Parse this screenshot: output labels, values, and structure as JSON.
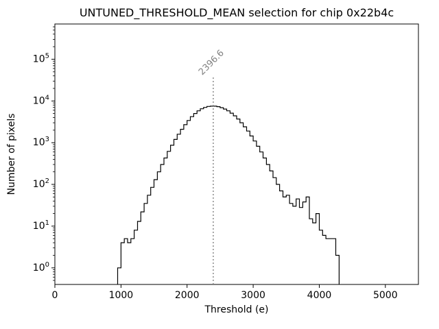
{
  "figure": {
    "title": "UNTUNED_THRESHOLD_MEAN selection for chip 0x22b4c",
    "xlabel": "Threshold (e)",
    "ylabel": "Number of pixels"
  },
  "chart_data": {
    "type": "bar",
    "subtype": "step-histogram",
    "title": "UNTUNED_THRESHOLD_MEAN selection for chip 0x22b4c",
    "xlabel": "Threshold (e)",
    "ylabel": "Number of pixels",
    "yscale": "log",
    "grid": false,
    "legend": "none",
    "xlim": [
      0,
      5500
    ],
    "ylim": [
      0.4,
      700000
    ],
    "x_ticks": [
      0,
      1000,
      2000,
      3000,
      4000,
      5000
    ],
    "y_tick_exponents": [
      0,
      1,
      2,
      3,
      4,
      5
    ],
    "bin_start": 950,
    "bin_width": 50,
    "counts": [
      1,
      4,
      5,
      4,
      5,
      8,
      13,
      22,
      35,
      55,
      85,
      130,
      200,
      300,
      430,
      620,
      870,
      1200,
      1600,
      2100,
      2700,
      3400,
      4200,
      5000,
      5800,
      6500,
      7000,
      7400,
      7500,
      7500,
      7300,
      6900,
      6400,
      5800,
      5100,
      4400,
      3700,
      3000,
      2400,
      1900,
      1450,
      1100,
      820,
      600,
      430,
      300,
      210,
      145,
      100,
      70,
      50,
      55,
      35,
      30,
      45,
      28,
      38,
      50,
      15,
      12,
      20,
      8,
      6,
      5,
      5,
      5,
      2
    ],
    "line_color": "#000000",
    "vline": {
      "x": 2396.6,
      "label": "2396.6",
      "color": "#808080"
    }
  }
}
